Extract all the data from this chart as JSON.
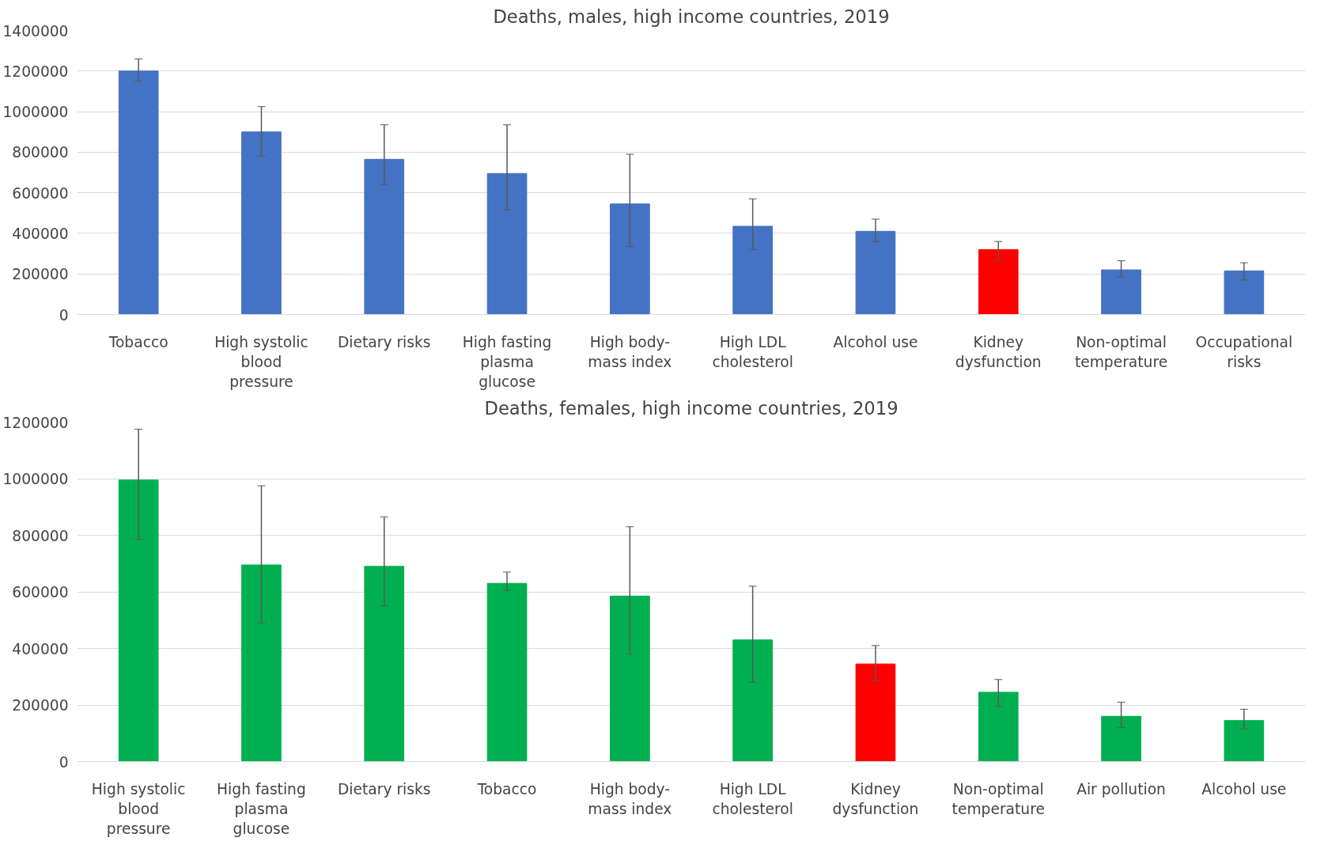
{
  "chart_data": [
    {
      "type": "bar",
      "title": "Deaths, males, high income countries, 2019",
      "categories": [
        "Tobacco",
        "High systolic blood pressure",
        "Dietary risks",
        "High fasting plasma glucose",
        "High body-mass index",
        "High LDL cholesterol",
        "Alcohol use",
        "Kidney dysfunction",
        "Non-optimal temperature",
        "Occupational risks"
      ],
      "values": [
        1200000,
        900000,
        765000,
        695000,
        545000,
        435000,
        410000,
        320000,
        220000,
        215000
      ],
      "colors": [
        "#4472c4",
        "#4472c4",
        "#4472c4",
        "#4472c4",
        "#4472c4",
        "#4472c4",
        "#4472c4",
        "#ff0000",
        "#4472c4",
        "#4472c4"
      ],
      "errors": [
        [
          1150000,
          1260000
        ],
        [
          780000,
          1025000
        ],
        [
          640000,
          935000
        ],
        [
          515000,
          935000
        ],
        [
          335000,
          790000
        ],
        [
          320000,
          570000
        ],
        [
          360000,
          470000
        ],
        [
          265000,
          360000
        ],
        [
          185000,
          265000
        ],
        [
          170000,
          255000
        ]
      ],
      "ylim": [
        0,
        1400000
      ],
      "yticks": [
        0,
        200000,
        400000,
        600000,
        800000,
        1000000,
        1200000,
        1400000
      ],
      "grid": "y"
    },
    {
      "type": "bar",
      "title": "Deaths, females, high income countries, 2019",
      "categories": [
        "High systolic blood pressure",
        "High fasting plasma glucose",
        "Dietary risks",
        "Tobacco",
        "High body-mass index",
        "High LDL cholesterol",
        "Kidney dysfunction",
        "Non-optimal temperature",
        "Air pollution",
        "Alcohol use"
      ],
      "values": [
        995000,
        695000,
        690000,
        630000,
        585000,
        430000,
        345000,
        245000,
        160000,
        145000
      ],
      "colors": [
        "#00b050",
        "#00b050",
        "#00b050",
        "#00b050",
        "#00b050",
        "#00b050",
        "#ff0000",
        "#00b050",
        "#00b050",
        "#00b050"
      ],
      "errors": [
        [
          785000,
          1175000
        ],
        [
          490000,
          975000
        ],
        [
          550000,
          865000
        ],
        [
          605000,
          670000
        ],
        [
          380000,
          830000
        ],
        [
          280000,
          620000
        ],
        [
          285000,
          410000
        ],
        [
          195000,
          290000
        ],
        [
          120000,
          210000
        ],
        [
          115000,
          185000
        ]
      ],
      "ylim": [
        0,
        1200000
      ],
      "yticks": [
        0,
        200000,
        400000,
        600000,
        800000,
        1000000,
        1200000
      ],
      "grid": "y"
    }
  ]
}
